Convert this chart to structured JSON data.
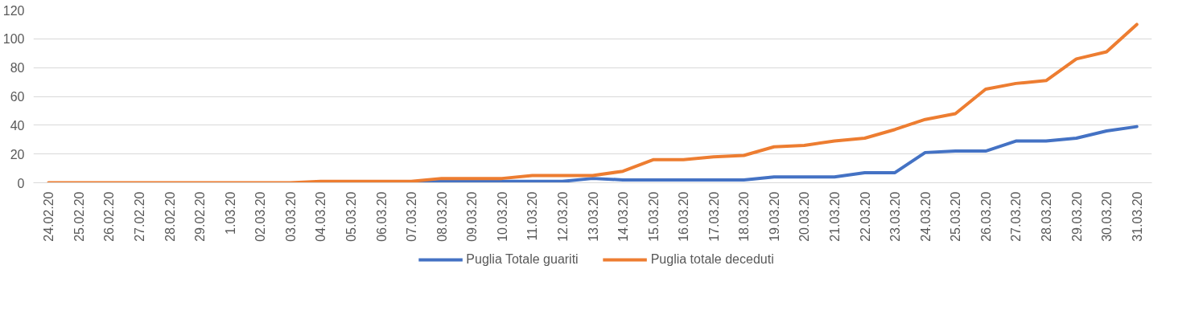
{
  "chart_data": {
    "type": "line",
    "categories": [
      "24.02.20",
      "25.02.20",
      "26.02.20",
      "27.02.20",
      "28.02.20",
      "29.02.20",
      "1.03.20",
      "02.03.20",
      "03.03.20",
      "04.03.20",
      "05.03.20",
      "06.03.20",
      "07.03.20",
      "08.03.20",
      "09.03.20",
      "10.03.20",
      "11.03.20",
      "12.03.20",
      "13.03.20",
      "14.03.20",
      "15.03.20",
      "16.03.20",
      "17.03.20",
      "18.03.20",
      "19.03.20",
      "20.03.20",
      "21.03.20",
      "22.03.20",
      "23.03.20",
      "24.03.20",
      "25.03.20",
      "26.03.20",
      "27.03.20",
      "28.03.20",
      "29.03.20",
      "30.03.20",
      "31.03.20"
    ],
    "series": [
      {
        "name": "Puglia Totale guariti",
        "color": "#4472c4",
        "values": [
          null,
          null,
          null,
          null,
          null,
          null,
          null,
          null,
          null,
          null,
          null,
          0,
          0,
          1,
          1,
          1,
          1,
          1,
          3,
          2,
          2,
          2,
          2,
          2,
          4,
          4,
          4,
          7,
          7,
          21,
          22,
          22,
          29,
          29,
          31,
          36,
          39
        ]
      },
      {
        "name": "Puglia totale deceduti",
        "color": "#ed7d31",
        "values": [
          0,
          0,
          0,
          0,
          0,
          0,
          0,
          0,
          0,
          1,
          1,
          1,
          1,
          3,
          3,
          3,
          5,
          5,
          5,
          8,
          16,
          16,
          18,
          19,
          25,
          26,
          29,
          31,
          37,
          44,
          48,
          65,
          69,
          71,
          86,
          91,
          110
        ]
      }
    ],
    "ylim": [
      0,
      120
    ],
    "yticks": [
      0,
      20,
      40,
      60,
      80,
      100,
      120
    ],
    "grid": "y",
    "legend": "bottom",
    "marker": "none",
    "line_style": "solid"
  }
}
